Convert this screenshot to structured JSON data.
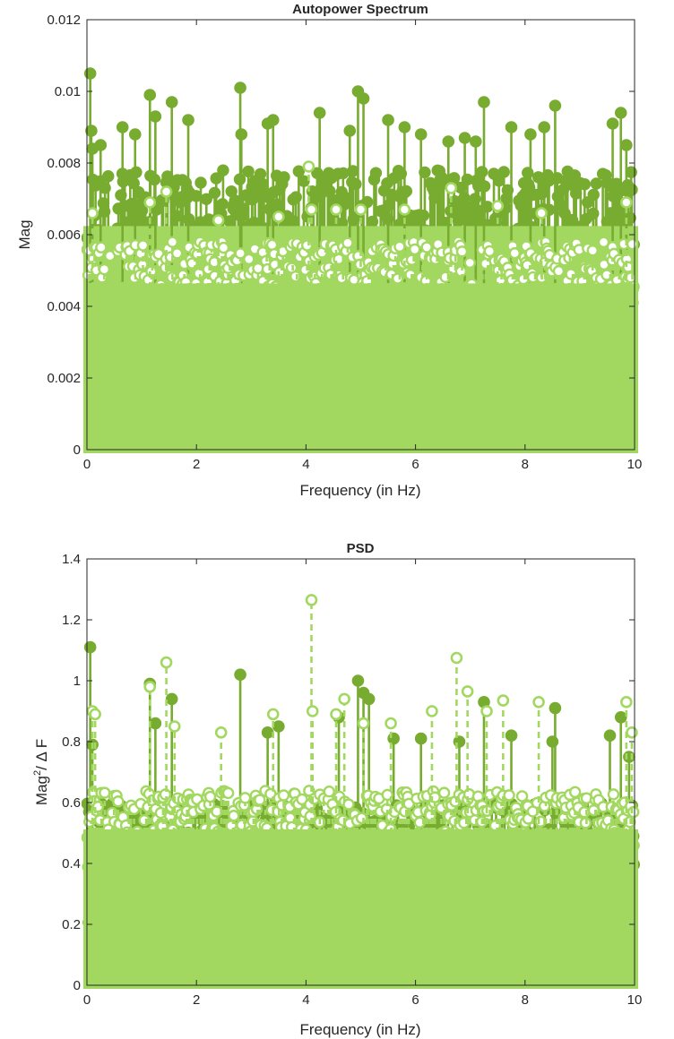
{
  "colors": {
    "primary_series": "#77ac30",
    "secondary_series": "#a2d860",
    "axes": "#262626",
    "background": "#ffffff"
  },
  "chart_data": [
    {
      "type": "stem",
      "title": "Autopower Spectrum",
      "xlabel": "Frequency (in Hz)",
      "ylabel": "Mag",
      "xlim": [
        0,
        10
      ],
      "ylim": [
        0,
        0.012
      ],
      "xticks": [
        0,
        2,
        4,
        6,
        8,
        10
      ],
      "xtick_labels": [
        "0",
        "2",
        "4",
        "6",
        "8",
        "10"
      ],
      "yticks": [
        0,
        0.002,
        0.004,
        0.006,
        0.008,
        0.01,
        0.012
      ],
      "ytick_labels": [
        "0",
        "0.002",
        "0.004",
        "0.006",
        "0.008",
        "0.01",
        "0.012"
      ],
      "series": [
        {
          "marker": "filled-circle",
          "line_style": "solid",
          "color": "#77ac30",
          "dense_band_top": 0.0078,
          "peaks": {
            "x": [
              0.06,
              0.08,
              0.1,
              0.25,
              0.65,
              0.88,
              1.15,
              1.25,
              1.55,
              1.85,
              2.8,
              2.82,
              3.3,
              3.4,
              4.25,
              4.8,
              4.95,
              5.05,
              5.5,
              5.8,
              6.1,
              6.6,
              6.9,
              7.1,
              7.25,
              7.75,
              8.1,
              8.35,
              8.55,
              9.6,
              9.75,
              9.85
            ],
            "y": [
              0.0105,
              0.0089,
              0.0084,
              0.0085,
              0.009,
              0.0088,
              0.0099,
              0.0093,
              0.0097,
              0.0092,
              0.0101,
              0.0088,
              0.0091,
              0.0092,
              0.0094,
              0.0089,
              0.01,
              0.0098,
              0.0092,
              0.009,
              0.0088,
              0.0086,
              0.0087,
              0.0086,
              0.0097,
              0.009,
              0.0088,
              0.009,
              0.0096,
              0.0091,
              0.0094,
              0.0085
            ]
          }
        },
        {
          "marker": "open-circle",
          "line_style": "dashed",
          "color": "#a2d860",
          "dense_band_top": 0.0058,
          "peaks": {
            "x": [
              0.1,
              1.15,
              1.45,
              2.4,
              3.5,
              4.05,
              4.1,
              4.55,
              5.0,
              5.8,
              6.65,
              7.5,
              8.3,
              9.85
            ],
            "y": [
              0.0066,
              0.0069,
              0.0072,
              0.0064,
              0.0065,
              0.0079,
              0.0067,
              0.0067,
              0.0067,
              0.0067,
              0.0073,
              0.0068,
              0.0066,
              0.0069
            ]
          }
        }
      ]
    },
    {
      "type": "stem",
      "title": "PSD",
      "xlabel": "Frequency (in Hz)",
      "ylabel": "Mag²/ Δ F",
      "ylabel_parts": {
        "base": "Mag",
        "sup": "2",
        "rest": "/ Δ F"
      },
      "xlim": [
        0,
        10
      ],
      "ylim": [
        0,
        1.4
      ],
      "xticks": [
        0,
        2,
        4,
        6,
        8,
        10
      ],
      "xtick_labels": [
        "0",
        "2",
        "4",
        "6",
        "8",
        "10"
      ],
      "yticks": [
        0,
        0.2,
        0.4,
        0.6,
        0.8,
        1.0,
        1.2,
        1.4
      ],
      "ytick_labels": [
        "0",
        "0.2",
        "0.4",
        "0.6",
        "0.8",
        "1",
        "1.2",
        "1.4"
      ],
      "series": [
        {
          "marker": "filled-circle",
          "line_style": "solid",
          "color": "#77ac30",
          "dense_band_top": 0.6,
          "peaks": {
            "x": [
              0.06,
              0.1,
              1.15,
              1.25,
              1.55,
              2.8,
              3.3,
              3.5,
              4.6,
              4.95,
              5.05,
              5.15,
              5.6,
              6.1,
              6.8,
              7.25,
              7.75,
              8.5,
              8.55,
              9.55,
              9.75,
              9.9
            ],
            "y": [
              1.11,
              0.79,
              0.99,
              0.86,
              0.94,
              1.02,
              0.83,
              0.85,
              0.88,
              1.0,
              0.96,
              0.94,
              0.81,
              0.81,
              0.8,
              0.93,
              0.82,
              0.8,
              0.91,
              0.82,
              0.88,
              0.75
            ]
          }
        },
        {
          "marker": "open-circle",
          "line_style": "dashed",
          "color": "#a2d860",
          "dense_band_top": 0.64,
          "peaks": {
            "x": [
              0.1,
              0.15,
              1.15,
              1.45,
              1.6,
              2.45,
              3.4,
              4.1,
              4.12,
              4.55,
              4.7,
              5.05,
              5.55,
              6.3,
              6.75,
              6.95,
              7.3,
              7.6,
              8.25,
              9.85,
              9.95
            ],
            "y": [
              0.9,
              0.89,
              0.98,
              1.06,
              0.85,
              0.83,
              0.89,
              1.265,
              0.9,
              0.89,
              0.94,
              0.86,
              0.86,
              0.9,
              1.075,
              0.965,
              0.9,
              0.935,
              0.93,
              0.93,
              0.83
            ]
          }
        }
      ]
    }
  ]
}
